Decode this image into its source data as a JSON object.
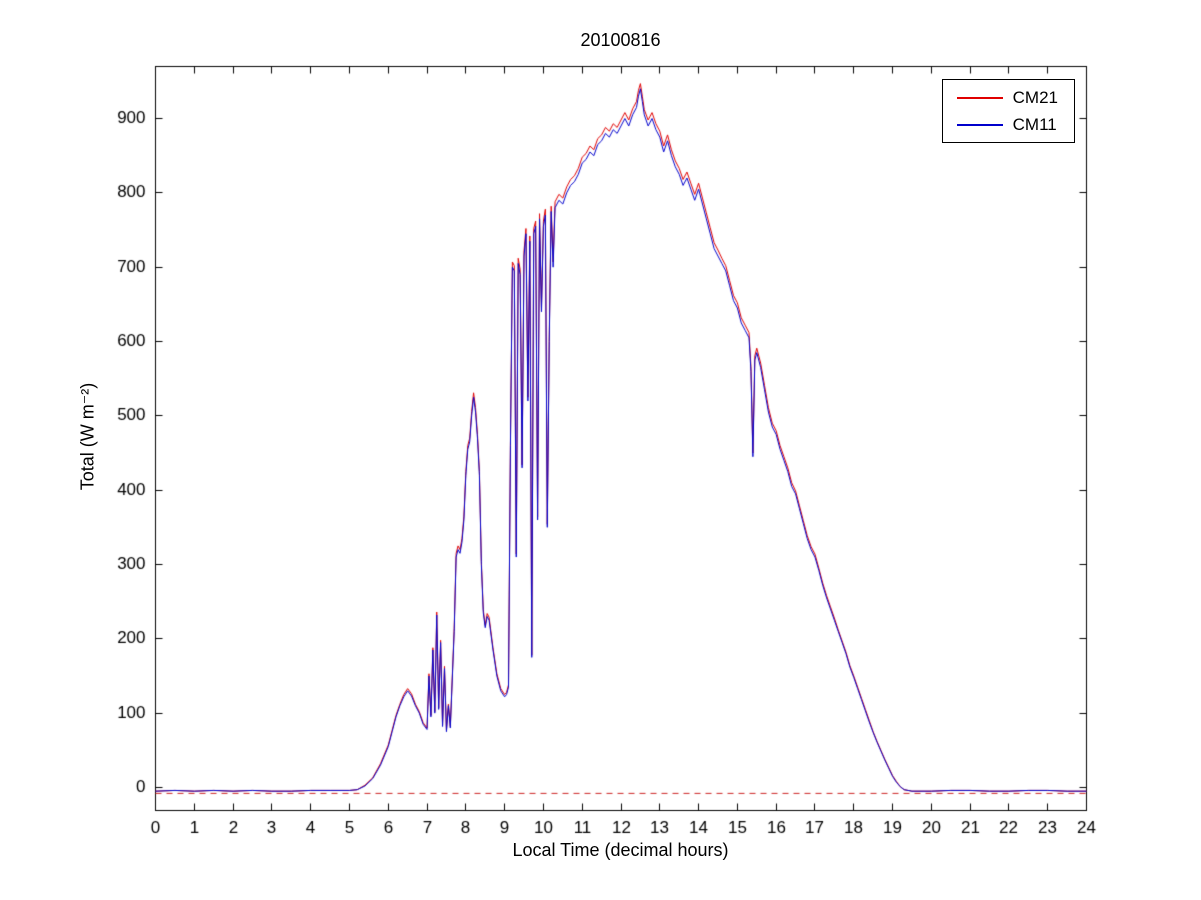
{
  "figure": {
    "background": "#ffffff",
    "axis_color": "#000000"
  },
  "chart_data": {
    "type": "line",
    "title": "20100816",
    "xlabel": "Local Time (decimal hours)",
    "ylabel": "Total (W m⁻²)",
    "xlim": [
      0,
      24
    ],
    "ylim": [
      -31,
      970
    ],
    "xticks": [
      0,
      1,
      2,
      3,
      4,
      5,
      6,
      7,
      8,
      9,
      10,
      11,
      12,
      13,
      14,
      15,
      16,
      17,
      18,
      19,
      20,
      21,
      22,
      23,
      24
    ],
    "yticks": [
      0,
      100,
      200,
      300,
      400,
      500,
      600,
      700,
      800,
      900
    ],
    "grid": false,
    "legend_position": "top-right",
    "series": [
      {
        "name": "CM21",
        "color": "#e00000"
      },
      {
        "name": "CM11",
        "color": "#0000cc"
      }
    ],
    "refline": {
      "y": -8,
      "color": "#cc2222",
      "dash": true
    },
    "points_format": [
      "time_decimal_hours",
      "CM21_Wm2",
      "CM11_Wm2"
    ],
    "points": [
      [
        0,
        -5,
        -5
      ],
      [
        0.5,
        -4,
        -4
      ],
      [
        1,
        -5,
        -5
      ],
      [
        1.5,
        -4,
        -4
      ],
      [
        2,
        -5,
        -5
      ],
      [
        2.5,
        -4,
        -4
      ],
      [
        3,
        -5,
        -5
      ],
      [
        3.5,
        -5,
        -5
      ],
      [
        4,
        -4,
        -4
      ],
      [
        4.5,
        -4,
        -4
      ],
      [
        5,
        -4,
        -4
      ],
      [
        5.2,
        -3,
        -3
      ],
      [
        5.4,
        3,
        2
      ],
      [
        5.6,
        13,
        12
      ],
      [
        5.8,
        32,
        30
      ],
      [
        6.0,
        57,
        55
      ],
      [
        6.1,
        77,
        75
      ],
      [
        6.2,
        97,
        95
      ],
      [
        6.3,
        112,
        110
      ],
      [
        6.4,
        125,
        122
      ],
      [
        6.5,
        133,
        130
      ],
      [
        6.6,
        126,
        123
      ],
      [
        6.7,
        112,
        110
      ],
      [
        6.8,
        102,
        100
      ],
      [
        6.9,
        87,
        85
      ],
      [
        7.0,
        80,
        78
      ],
      [
        7.05,
        153,
        150
      ],
      [
        7.1,
        97,
        95
      ],
      [
        7.15,
        188,
        185
      ],
      [
        7.2,
        102,
        100
      ],
      [
        7.25,
        236,
        232
      ],
      [
        7.3,
        107,
        105
      ],
      [
        7.35,
        198,
        195
      ],
      [
        7.4,
        84,
        82
      ],
      [
        7.45,
        163,
        160
      ],
      [
        7.5,
        77,
        75
      ],
      [
        7.55,
        112,
        110
      ],
      [
        7.6,
        82,
        80
      ],
      [
        7.7,
        214,
        210
      ],
      [
        7.75,
        315,
        310
      ],
      [
        7.8,
        325,
        320
      ],
      [
        7.85,
        320,
        315
      ],
      [
        7.9,
        335,
        330
      ],
      [
        7.95,
        365,
        360
      ],
      [
        8.0,
        425,
        420
      ],
      [
        8.05,
        460,
        455
      ],
      [
        8.1,
        470,
        465
      ],
      [
        8.15,
        506,
        500
      ],
      [
        8.2,
        531,
        525
      ],
      [
        8.25,
        511,
        505
      ],
      [
        8.3,
        475,
        470
      ],
      [
        8.35,
        425,
        420
      ],
      [
        8.4,
        304,
        300
      ],
      [
        8.45,
        239,
        235
      ],
      [
        8.5,
        218,
        215
      ],
      [
        8.55,
        234,
        230
      ],
      [
        8.6,
        229,
        225
      ],
      [
        8.7,
        188,
        185
      ],
      [
        8.8,
        153,
        150
      ],
      [
        8.9,
        133,
        130
      ],
      [
        9.0,
        125,
        122
      ],
      [
        9.05,
        128,
        125
      ],
      [
        9.1,
        138,
        135
      ],
      [
        9.15,
        465,
        460
      ],
      [
        9.2,
        707,
        700
      ],
      [
        9.25,
        702,
        695
      ],
      [
        9.3,
        314,
        310
      ],
      [
        9.35,
        712,
        705
      ],
      [
        9.4,
        697,
        690
      ],
      [
        9.45,
        434,
        430
      ],
      [
        9.5,
        722,
        715
      ],
      [
        9.55,
        752,
        745
      ],
      [
        9.6,
        525,
        520
      ],
      [
        9.65,
        742,
        735
      ],
      [
        9.7,
        178,
        175
      ],
      [
        9.75,
        752,
        745
      ],
      [
        9.8,
        762,
        755
      ],
      [
        9.85,
        364,
        360
      ],
      [
        9.9,
        772,
        765
      ],
      [
        9.95,
        646,
        640
      ],
      [
        10.0,
        762,
        755
      ],
      [
        10.05,
        778,
        770
      ],
      [
        10.1,
        354,
        350
      ],
      [
        10.15,
        606,
        600
      ],
      [
        10.2,
        782,
        775
      ],
      [
        10.25,
        707,
        700
      ],
      [
        10.3,
        788,
        780
      ],
      [
        10.4,
        798,
        790
      ],
      [
        10.5,
        793,
        785
      ],
      [
        10.6,
        808,
        800
      ],
      [
        10.7,
        818,
        810
      ],
      [
        10.8,
        823,
        815
      ],
      [
        10.9,
        833,
        825
      ],
      [
        11.0,
        848,
        840
      ],
      [
        11.1,
        853,
        845
      ],
      [
        11.2,
        863,
        855
      ],
      [
        11.3,
        858,
        850
      ],
      [
        11.4,
        873,
        865
      ],
      [
        11.5,
        878,
        870
      ],
      [
        11.6,
        888,
        880
      ],
      [
        11.7,
        883,
        875
      ],
      [
        11.8,
        893,
        885
      ],
      [
        11.9,
        888,
        880
      ],
      [
        12.0,
        898,
        890
      ],
      [
        12.1,
        908,
        900
      ],
      [
        12.2,
        898,
        890
      ],
      [
        12.3,
        913,
        905
      ],
      [
        12.4,
        923,
        915
      ],
      [
        12.45,
        938,
        930
      ],
      [
        12.5,
        947,
        940
      ],
      [
        12.55,
        930,
        923
      ],
      [
        12.6,
        912,
        905
      ],
      [
        12.7,
        898,
        890
      ],
      [
        12.8,
        908,
        900
      ],
      [
        12.9,
        893,
        885
      ],
      [
        13.0,
        883,
        875
      ],
      [
        13.1,
        863,
        855
      ],
      [
        13.2,
        878,
        870
      ],
      [
        13.3,
        858,
        850
      ],
      [
        13.4,
        843,
        835
      ],
      [
        13.5,
        833,
        825
      ],
      [
        13.6,
        818,
        810
      ],
      [
        13.7,
        828,
        820
      ],
      [
        13.8,
        813,
        805
      ],
      [
        13.9,
        798,
        790
      ],
      [
        14.0,
        813,
        805
      ],
      [
        14.1,
        793,
        785
      ],
      [
        14.2,
        773,
        765
      ],
      [
        14.3,
        753,
        745
      ],
      [
        14.4,
        733,
        725
      ],
      [
        14.5,
        723,
        715
      ],
      [
        14.6,
        712,
        705
      ],
      [
        14.7,
        702,
        695
      ],
      [
        14.8,
        682,
        675
      ],
      [
        14.9,
        662,
        655
      ],
      [
        15.0,
        652,
        645
      ],
      [
        15.1,
        632,
        625
      ],
      [
        15.2,
        622,
        615
      ],
      [
        15.3,
        612,
        605
      ],
      [
        15.35,
        566,
        560
      ],
      [
        15.4,
        450,
        445
      ],
      [
        15.45,
        581,
        575
      ],
      [
        15.5,
        591,
        585
      ],
      [
        15.6,
        571,
        565
      ],
      [
        15.7,
        541,
        535
      ],
      [
        15.8,
        511,
        505
      ],
      [
        15.9,
        490,
        485
      ],
      [
        16.0,
        480,
        475
      ],
      [
        16.1,
        460,
        455
      ],
      [
        16.2,
        445,
        440
      ],
      [
        16.3,
        430,
        425
      ],
      [
        16.4,
        410,
        405
      ],
      [
        16.5,
        399,
        395
      ],
      [
        16.6,
        379,
        375
      ],
      [
        16.7,
        359,
        355
      ],
      [
        16.8,
        339,
        335
      ],
      [
        16.9,
        324,
        320
      ],
      [
        17.0,
        314,
        310
      ],
      [
        17.1,
        295,
        292
      ],
      [
        17.2,
        275,
        272
      ],
      [
        17.3,
        258,
        255
      ],
      [
        17.4,
        243,
        240
      ],
      [
        17.5,
        228,
        225
      ],
      [
        17.6,
        212,
        210
      ],
      [
        17.7,
        197,
        195
      ],
      [
        17.8,
        182,
        180
      ],
      [
        17.9,
        164,
        162
      ],
      [
        18.0,
        150,
        148
      ],
      [
        18.1,
        135,
        133
      ],
      [
        18.2,
        120,
        118
      ],
      [
        18.3,
        105,
        103
      ],
      [
        18.4,
        90,
        88
      ],
      [
        18.5,
        75,
        74
      ],
      [
        18.6,
        62,
        61
      ],
      [
        18.7,
        50,
        49
      ],
      [
        18.8,
        38,
        37
      ],
      [
        18.9,
        27,
        26
      ],
      [
        19.0,
        16,
        15
      ],
      [
        19.1,
        8,
        7
      ],
      [
        19.2,
        1,
        1
      ],
      [
        19.3,
        -3,
        -3
      ],
      [
        19.5,
        -5,
        -5
      ],
      [
        20.0,
        -5,
        -5
      ],
      [
        20.5,
        -4,
        -4
      ],
      [
        21.0,
        -4,
        -4
      ],
      [
        21.5,
        -5,
        -5
      ],
      [
        22.0,
        -5,
        -5
      ],
      [
        22.5,
        -4,
        -4
      ],
      [
        23.0,
        -4,
        -4
      ],
      [
        23.5,
        -5,
        -5
      ],
      [
        24.0,
        -5,
        -5
      ]
    ]
  }
}
